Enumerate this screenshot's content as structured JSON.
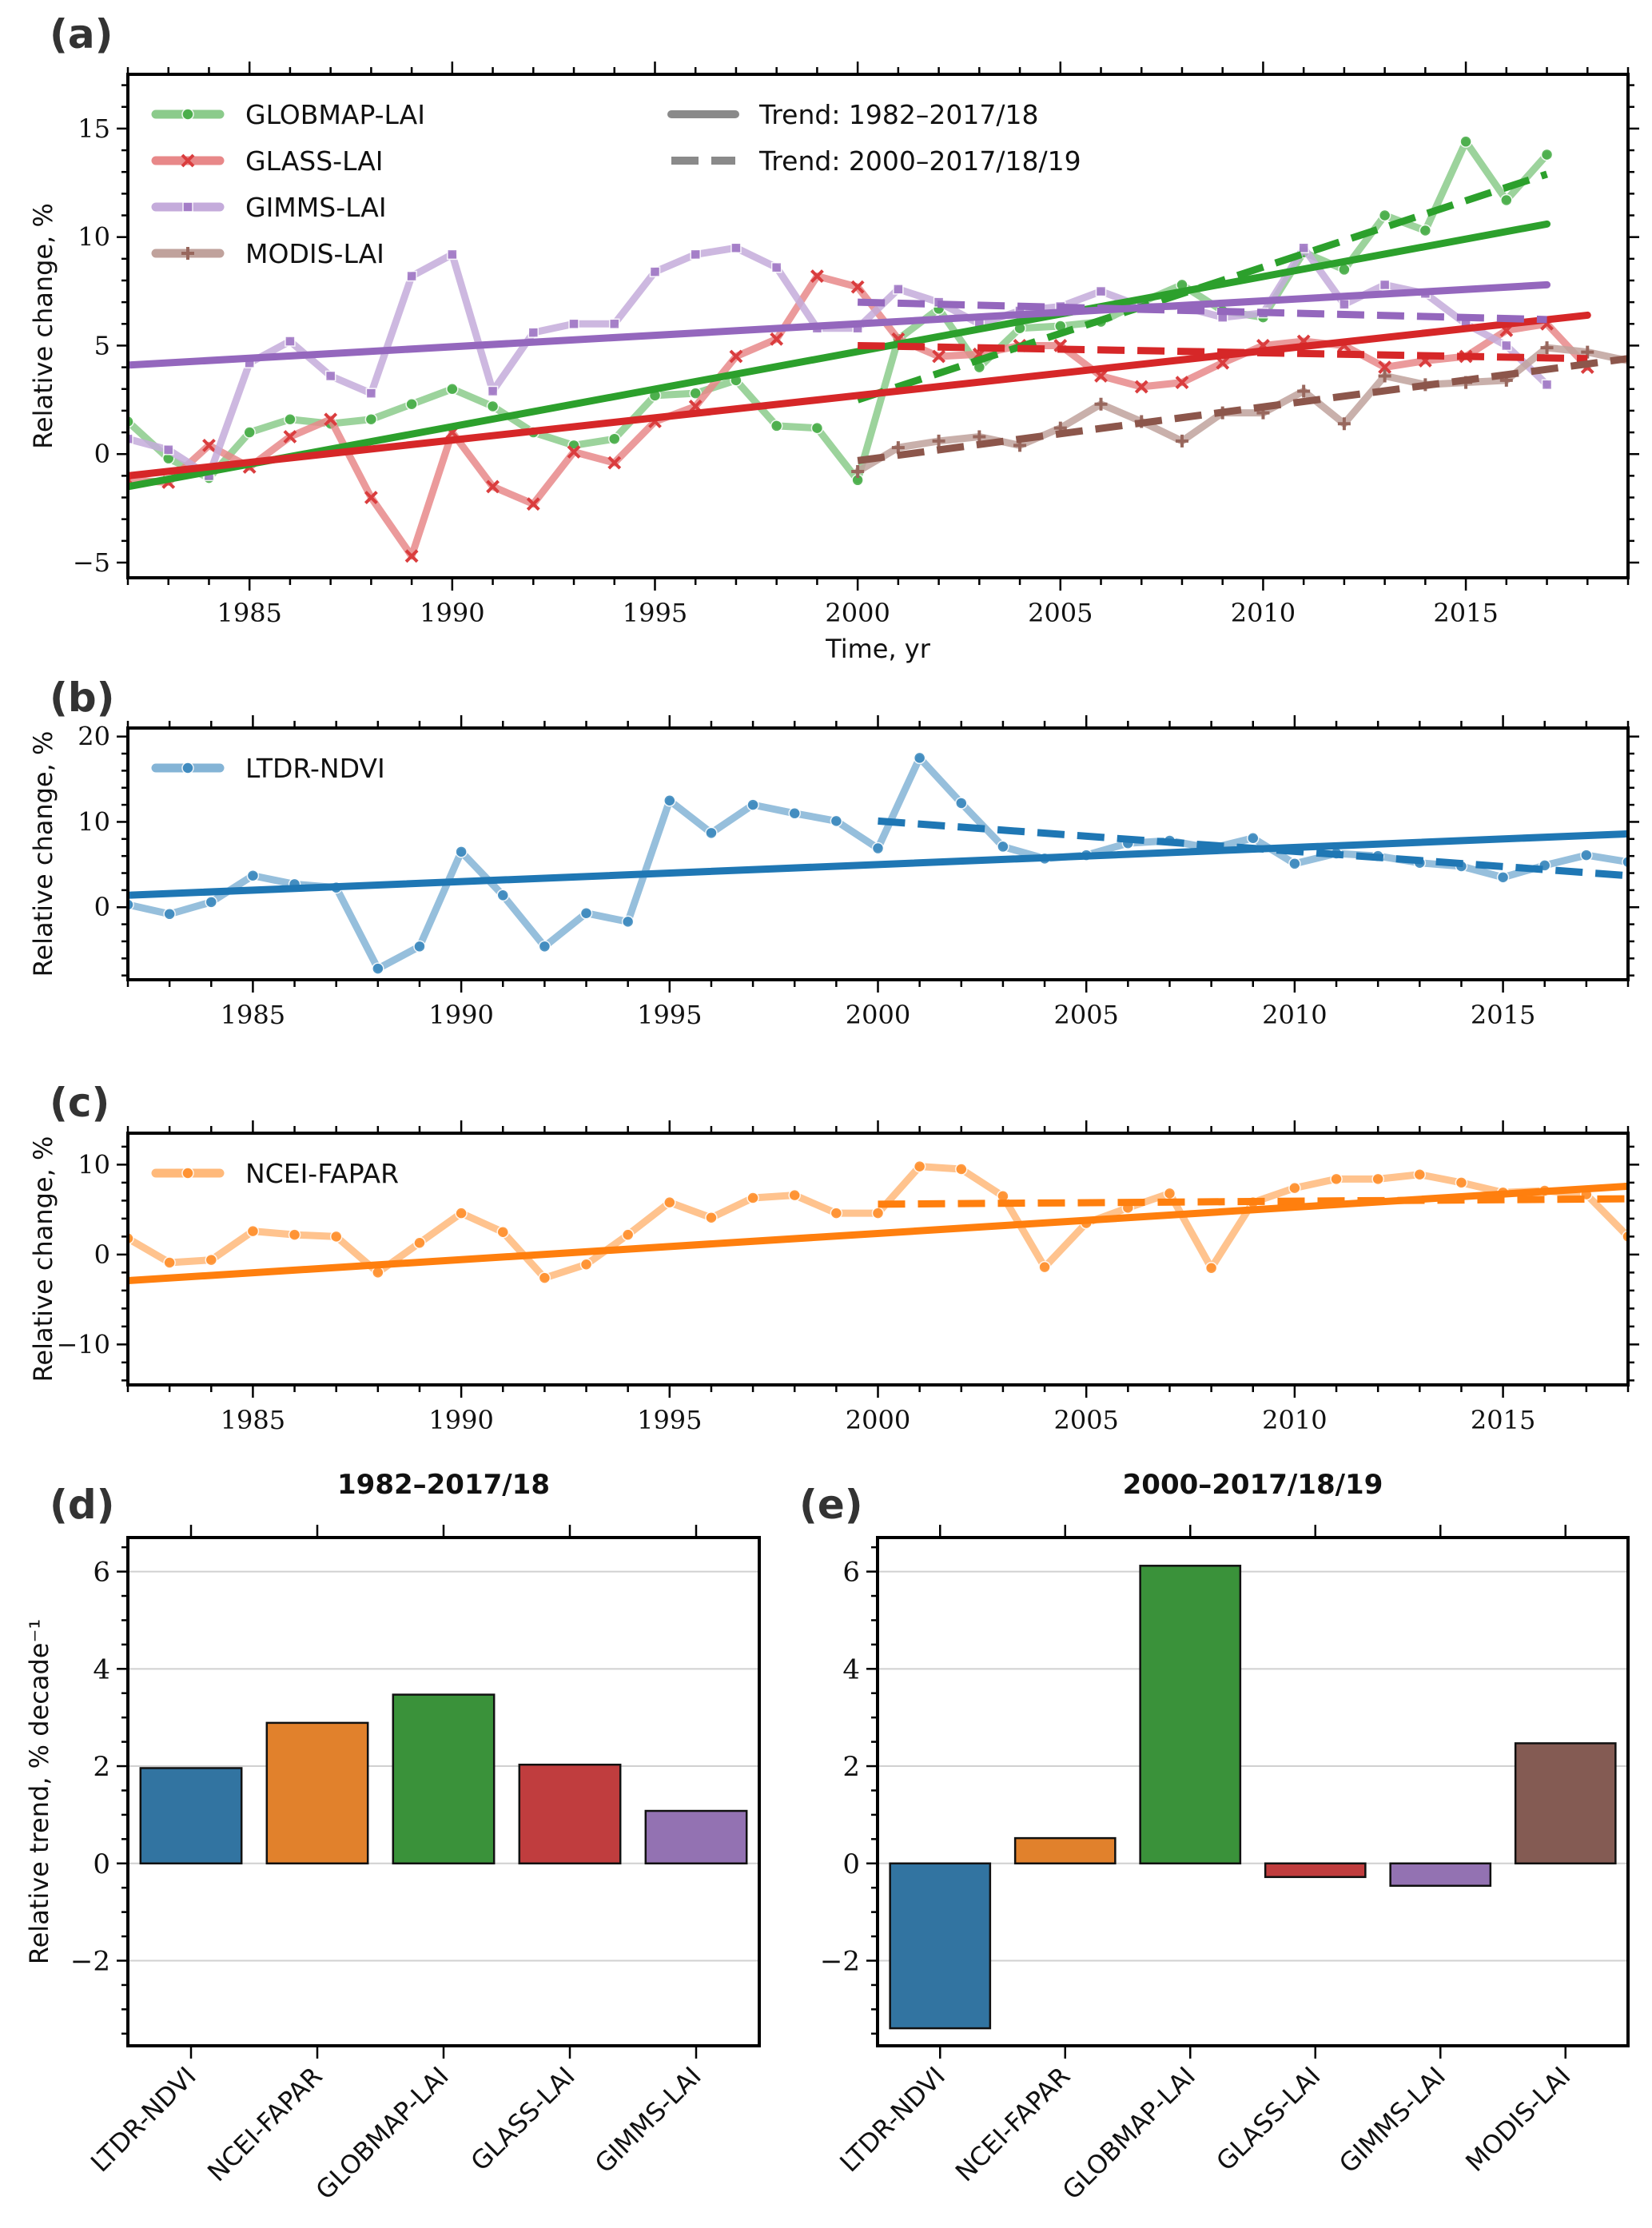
{
  "figure": {
    "panels": [
      "(a)",
      "(b)",
      "(c)",
      "(d)",
      "(e)"
    ]
  },
  "chart_data": [
    {
      "id": "a",
      "label": "(a)",
      "type": "line",
      "xlabel": "Time, yr",
      "ylabel": "Relative change, %",
      "xlim": [
        1982,
        2019
      ],
      "ylim": [
        -5.7,
        17.5
      ],
      "xticks": [
        1985,
        1990,
        1995,
        2000,
        2005,
        2010,
        2015
      ],
      "yticks": [
        -5,
        0,
        5,
        10,
        15
      ],
      "legend": {
        "placement": "top-left",
        "series_entries": [
          "GLOBMAP-LAI",
          "GLASS-LAI",
          "GIMMS-LAI",
          "MODIS-LAI"
        ],
        "trend_entries": [
          "Trend: 1982–2017/18",
          "Trend: 2000–2017/18/19"
        ]
      },
      "series": [
        {
          "name": "GLOBMAP-LAI",
          "color": "#2ca02c",
          "marker": "circle",
          "x": [
            1982,
            1983,
            1984,
            1985,
            1986,
            1987,
            1988,
            1989,
            1990,
            1991,
            1992,
            1993,
            1994,
            1995,
            1996,
            1997,
            1998,
            1999,
            2000,
            2001,
            2002,
            2003,
            2004,
            2005,
            2006,
            2007,
            2008,
            2009,
            2010,
            2011,
            2012,
            2013,
            2014,
            2015,
            2016,
            2017
          ],
          "values": [
            1.5,
            -0.2,
            -1.1,
            1.0,
            1.6,
            1.4,
            1.6,
            2.3,
            3.0,
            2.2,
            1.0,
            0.4,
            0.7,
            2.7,
            2.8,
            3.4,
            1.3,
            1.2,
            -1.2,
            5.3,
            6.7,
            4.0,
            5.8,
            5.9,
            6.1,
            7.0,
            7.8,
            6.6,
            6.3,
            9.3,
            8.5,
            11.0,
            10.3,
            14.4,
            11.7,
            13.8
          ],
          "trend_full": {
            "x": [
              1982,
              2017
            ],
            "y": [
              -1.5,
              10.6
            ]
          },
          "trend_recent": {
            "x": [
              2000,
              2017
            ],
            "y": [
              2.5,
              12.9
            ]
          }
        },
        {
          "name": "GLASS-LAI",
          "color": "#d62728",
          "marker": "x",
          "x": [
            1982,
            1983,
            1984,
            1985,
            1986,
            1987,
            1988,
            1989,
            1990,
            1991,
            1992,
            1993,
            1994,
            1995,
            1996,
            1997,
            1998,
            1999,
            2000,
            2001,
            2002,
            2003,
            2004,
            2005,
            2006,
            2007,
            2008,
            2009,
            2010,
            2011,
            2012,
            2013,
            2014,
            2015,
            2016,
            2017,
            2018
          ],
          "values": [
            -1.2,
            -1.3,
            0.4,
            -0.6,
            0.8,
            1.6,
            -2.0,
            -4.7,
            1.0,
            -1.5,
            -2.3,
            0.1,
            -0.4,
            1.5,
            2.2,
            4.5,
            5.3,
            8.2,
            7.7,
            5.3,
            4.5,
            4.6,
            5.0,
            5.0,
            3.6,
            3.1,
            3.3,
            4.2,
            5.0,
            5.2,
            5.0,
            4.0,
            4.3,
            4.5,
            5.7,
            6.0,
            4.0
          ],
          "trend_full": {
            "x": [
              1982,
              2018
            ],
            "y": [
              -1.0,
              6.4
            ]
          },
          "trend_recent": {
            "x": [
              2000,
              2018
            ],
            "y": [
              5.0,
              4.4
            ]
          }
        },
        {
          "name": "GIMMS-LAI",
          "color": "#9467bd",
          "marker": "square",
          "x": [
            1982,
            1983,
            1984,
            1985,
            1986,
            1987,
            1988,
            1989,
            1990,
            1991,
            1992,
            1993,
            1994,
            1995,
            1996,
            1997,
            1998,
            1999,
            2000,
            2001,
            2002,
            2003,
            2004,
            2005,
            2006,
            2007,
            2008,
            2009,
            2010,
            2011,
            2012,
            2013,
            2014,
            2015,
            2016,
            2017
          ],
          "values": [
            0.7,
            0.2,
            -1.0,
            4.2,
            5.2,
            3.6,
            2.8,
            8.2,
            9.2,
            2.9,
            5.6,
            6.0,
            6.0,
            8.4,
            9.2,
            9.5,
            8.6,
            5.8,
            5.8,
            7.6,
            7.0,
            6.0,
            6.6,
            6.8,
            7.5,
            6.8,
            6.8,
            6.3,
            6.5,
            9.5,
            6.9,
            7.8,
            7.4,
            6.0,
            5.0,
            3.2
          ],
          "trend_full": {
            "x": [
              1982,
              2017
            ],
            "y": [
              4.1,
              7.8
            ]
          },
          "trend_recent": {
            "x": [
              2000,
              2017
            ],
            "y": [
              7.0,
              6.2
            ]
          }
        },
        {
          "name": "MODIS-LAI",
          "color": "#8c564b",
          "marker": "plus",
          "x": [
            2000,
            2001,
            2002,
            2003,
            2004,
            2005,
            2006,
            2007,
            2008,
            2009,
            2010,
            2011,
            2012,
            2013,
            2014,
            2015,
            2016,
            2017,
            2018,
            2019
          ],
          "values": [
            -0.8,
            0.3,
            0.6,
            0.8,
            0.4,
            1.2,
            2.3,
            1.5,
            0.6,
            1.9,
            1.9,
            2.9,
            1.4,
            3.6,
            3.2,
            3.3,
            3.4,
            4.9,
            4.7,
            4.3
          ],
          "trend_recent": {
            "x": [
              2000,
              2019
            ],
            "y": [
              -0.3,
              4.4
            ]
          }
        }
      ]
    },
    {
      "id": "b",
      "label": "(b)",
      "type": "line",
      "xlabel": "",
      "ylabel": "Relative change, %",
      "xlim": [
        1982,
        2018
      ],
      "ylim": [
        -8.5,
        21
      ],
      "xticks": [
        1985,
        1990,
        1995,
        2000,
        2005,
        2010,
        2015
      ],
      "yticks": [
        0,
        10,
        20
      ],
      "legend": {
        "placement": "top-left",
        "series_entries": [
          "LTDR-NDVI"
        ]
      },
      "series": [
        {
          "name": "LTDR-NDVI",
          "color": "#1f77b4",
          "marker": "circle",
          "x": [
            1982,
            1983,
            1984,
            1985,
            1986,
            1987,
            1988,
            1989,
            1990,
            1991,
            1992,
            1993,
            1994,
            1995,
            1996,
            1997,
            1998,
            1999,
            2000,
            2001,
            2002,
            2003,
            2004,
            2005,
            2006,
            2007,
            2008,
            2009,
            2010,
            2011,
            2012,
            2013,
            2014,
            2015,
            2016,
            2017,
            2018
          ],
          "values": [
            0.3,
            -0.8,
            0.6,
            3.7,
            2.7,
            2.3,
            -7.2,
            -4.6,
            6.5,
            1.4,
            -4.6,
            -0.7,
            -1.7,
            12.5,
            8.7,
            12.0,
            11.0,
            10.1,
            6.9,
            17.5,
            12.2,
            7.1,
            5.7,
            6.1,
            7.5,
            7.8,
            6.9,
            8.1,
            5.1,
            6.3,
            6.0,
            5.2,
            4.8,
            3.5,
            4.9,
            6.1,
            5.3
          ],
          "trend_full": {
            "x": [
              1982,
              2018
            ],
            "y": [
              1.4,
              8.6
            ]
          },
          "trend_recent": {
            "x": [
              2000,
              2018
            ],
            "y": [
              10.1,
              3.7
            ]
          }
        }
      ]
    },
    {
      "id": "c",
      "label": "(c)",
      "type": "line",
      "xlabel": "",
      "ylabel": "Relative change, %",
      "xlim": [
        1982,
        2018
      ],
      "ylim": [
        -14.5,
        13.5
      ],
      "xticks": [
        1985,
        1990,
        1995,
        2000,
        2005,
        2010,
        2015
      ],
      "yticks": [
        -10,
        0,
        10
      ],
      "legend": {
        "placement": "top-left",
        "series_entries": [
          "NCEI-FAPAR"
        ]
      },
      "series": [
        {
          "name": "NCEI-FAPAR",
          "color": "#ff7f0e",
          "marker": "circle",
          "x": [
            1982,
            1983,
            1984,
            1985,
            1986,
            1987,
            1988,
            1989,
            1990,
            1991,
            1992,
            1993,
            1994,
            1995,
            1996,
            1997,
            1998,
            1999,
            2000,
            2001,
            2002,
            2003,
            2004,
            2005,
            2006,
            2007,
            2008,
            2009,
            2010,
            2011,
            2012,
            2013,
            2014,
            2015,
            2016,
            2017,
            2018
          ],
          "values": [
            1.8,
            -0.9,
            -0.6,
            2.6,
            2.2,
            2.0,
            -2.0,
            1.3,
            4.6,
            2.5,
            -2.6,
            -1.1,
            2.2,
            5.8,
            4.1,
            6.3,
            6.6,
            4.6,
            4.6,
            9.8,
            9.5,
            6.5,
            -1.4,
            3.5,
            5.2,
            6.8,
            -1.5,
            5.8,
            7.4,
            8.4,
            8.4,
            8.9,
            8.0,
            6.9,
            7.1,
            6.7,
            2.0
          ],
          "trend_full": {
            "x": [
              1982,
              2018
            ],
            "y": [
              -2.9,
              7.6
            ]
          },
          "trend_recent": {
            "x": [
              2000,
              2018
            ],
            "y": [
              5.6,
              6.2
            ]
          }
        }
      ]
    },
    {
      "id": "d",
      "label": "(d)",
      "type": "bar",
      "title": "1982–2017/18",
      "ylabel": "Relative trend, % decade⁻¹",
      "ylim": [
        -3.75,
        6.7
      ],
      "yticks": [
        -2,
        0,
        2,
        4,
        6
      ],
      "grid": true,
      "categories": [
        "LTDR-NDVI",
        "NCEI-FAPAR",
        "GLOBMAP-LAI",
        "GLASS-LAI",
        "GIMMS-LAI"
      ],
      "values": [
        1.96,
        2.89,
        3.47,
        2.03,
        1.08
      ],
      "colors": [
        "#3274a1",
        "#e1812c",
        "#3a923a",
        "#c03d3e",
        "#9372b2"
      ]
    },
    {
      "id": "e",
      "label": "(e)",
      "type": "bar",
      "title": "2000–2017/18/19",
      "ylabel": "",
      "ylim": [
        -3.75,
        6.7
      ],
      "yticks": [
        -2,
        0,
        2,
        4,
        6
      ],
      "grid": true,
      "categories": [
        "LTDR-NDVI",
        "NCEI-FAPAR",
        "GLOBMAP-LAI",
        "GLASS-LAI",
        "GIMMS-LAI",
        "MODIS-LAI"
      ],
      "values": [
        -3.39,
        0.52,
        6.12,
        -0.28,
        -0.46,
        2.47
      ],
      "colors": [
        "#3274a1",
        "#e1812c",
        "#3a923a",
        "#c03d3e",
        "#9372b2",
        "#845b53"
      ]
    }
  ]
}
